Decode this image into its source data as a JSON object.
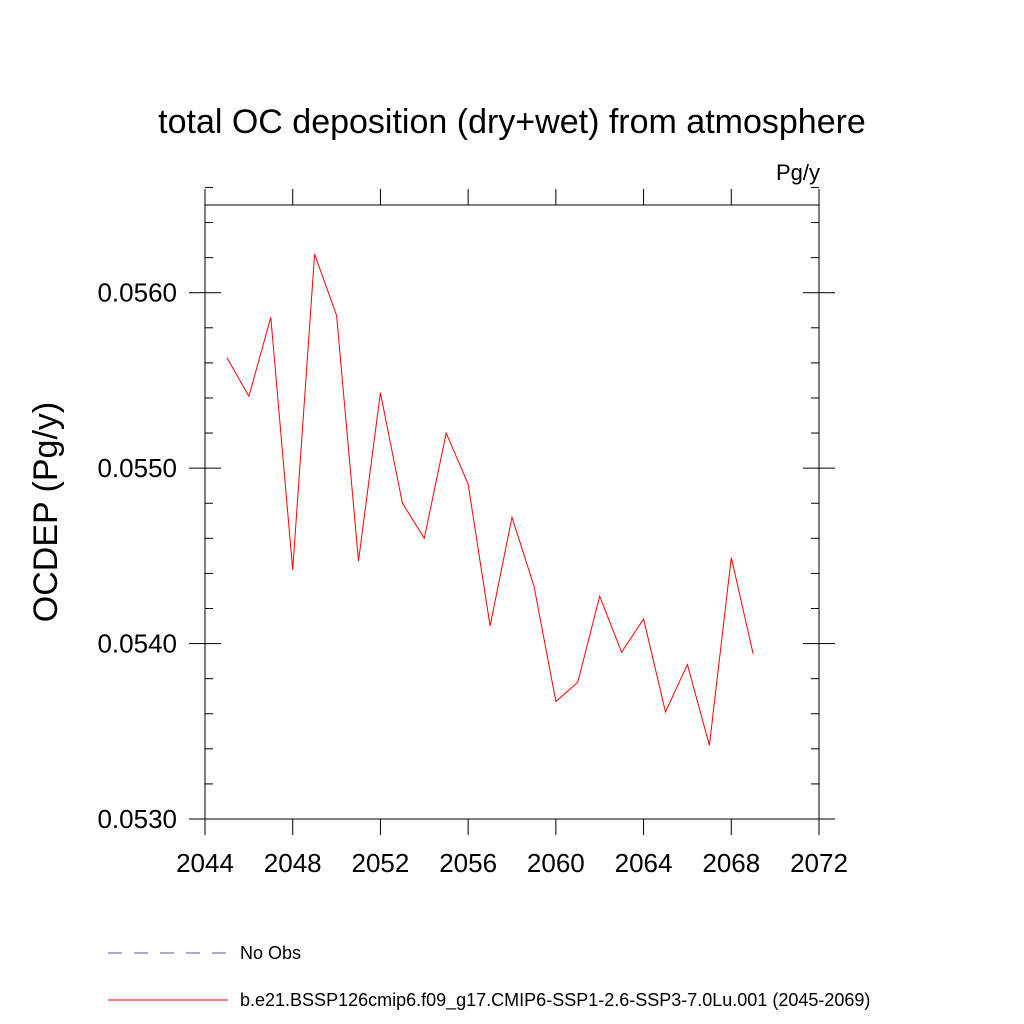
{
  "chart_data": {
    "type": "line",
    "title": "total OC deposition (dry+wet) from atmosphere",
    "units": "Pg/y",
    "ylabel": "OCDEP  (Pg/y)",
    "xlabel": "",
    "xlim": [
      2044,
      2072
    ],
    "ylim": [
      0.053,
      0.0565
    ],
    "xticks": [
      2044,
      2048,
      2052,
      2056,
      2060,
      2064,
      2068,
      2072
    ],
    "yticks": [
      0.053,
      0.054,
      0.055,
      0.056
    ],
    "ytick_labels": [
      "0.0530",
      "0.0540",
      "0.0550",
      "0.0560"
    ],
    "grid": false,
    "legend_position": "bottom",
    "series": [
      {
        "name": "b.e21.BSSP126cmip6.f09_g17.CMIP6-SSP1-2.6-SSP3-7.0Lu.001 (2045-2069)",
        "color": "#ff0000",
        "style": "solid",
        "x": [
          2045,
          2046,
          2047,
          2048,
          2049,
          2050,
          2051,
          2052,
          2053,
          2054,
          2055,
          2056,
          2057,
          2058,
          2059,
          2060,
          2061,
          2062,
          2063,
          2064,
          2065,
          2066,
          2067,
          2068,
          2069
        ],
        "y": [
          0.05563,
          0.05541,
          0.05586,
          0.05442,
          0.05622,
          0.05587,
          0.05447,
          0.05543,
          0.0548,
          0.0546,
          0.0552,
          0.05491,
          0.0541,
          0.05472,
          0.05433,
          0.05367,
          0.05378,
          0.05427,
          0.05395,
          0.05414,
          0.05361,
          0.05388,
          0.05342,
          0.05449,
          0.05394
        ]
      }
    ],
    "legend": [
      {
        "label": "No Obs",
        "color": "#5a50a8",
        "style": "dashed"
      },
      {
        "label": "b.e21.BSSP126cmip6.f09_g17.CMIP6-SSP1-2.6-SSP3-7.0Lu.001 (2045-2069)",
        "color": "#ff0000",
        "style": "solid"
      }
    ]
  }
}
